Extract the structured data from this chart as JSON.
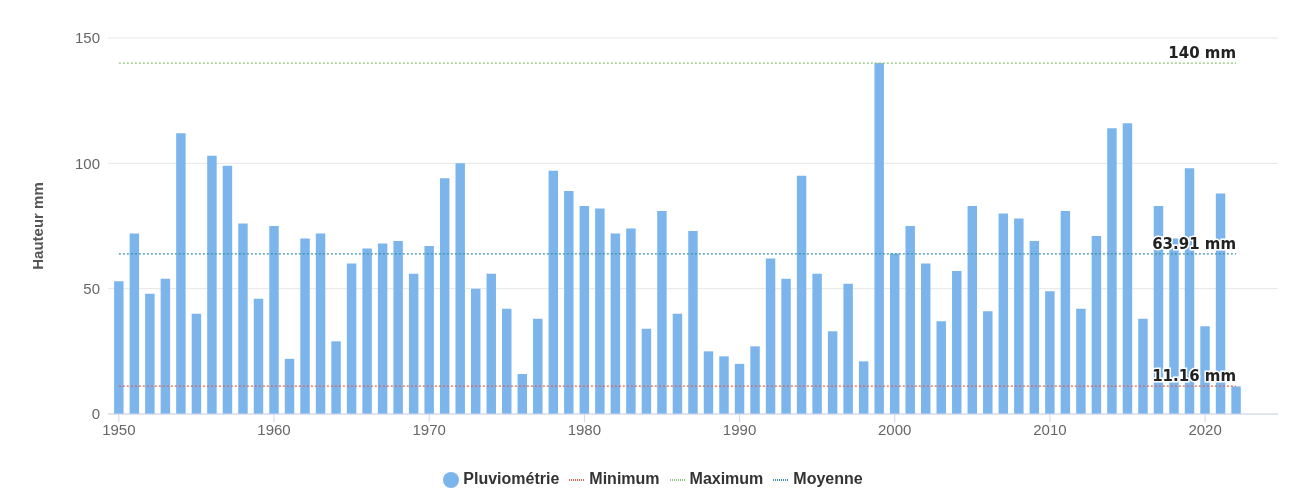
{
  "chart_data": {
    "type": "bar",
    "ylabel": "Hauteur mm",
    "x": [
      1950,
      1951,
      1952,
      1953,
      1954,
      1955,
      1956,
      1957,
      1958,
      1959,
      1960,
      1961,
      1962,
      1963,
      1964,
      1965,
      1966,
      1967,
      1968,
      1969,
      1970,
      1971,
      1972,
      1973,
      1974,
      1975,
      1976,
      1977,
      1978,
      1979,
      1980,
      1981,
      1982,
      1983,
      1984,
      1985,
      1986,
      1987,
      1988,
      1989,
      1990,
      1991,
      1992,
      1993,
      1994,
      1995,
      1996,
      1997,
      1998,
      1999,
      2000,
      2001,
      2002,
      2003,
      2004,
      2005,
      2006,
      2007,
      2008,
      2009,
      2010,
      2011,
      2012,
      2013,
      2014,
      2015,
      2016,
      2017,
      2018,
      2019,
      2020,
      2021,
      2022
    ],
    "xlim": [
      1949.3,
      2024.7
    ],
    "xticks": [
      1950,
      1960,
      1970,
      1980,
      1990,
      2000,
      2010,
      2020
    ],
    "ylim": [
      0,
      150
    ],
    "yticks": [
      0,
      50,
      100,
      150
    ],
    "grid": "y",
    "legend": "bottom",
    "series": [
      {
        "name": "Pluviométrie",
        "color": "#7cb5ec",
        "values": [
          53,
          72,
          48,
          54,
          112,
          40,
          103,
          99,
          76,
          46,
          75,
          22,
          70,
          72,
          29,
          60,
          66,
          68,
          69,
          56,
          67,
          94,
          100,
          50,
          56,
          42,
          16,
          38,
          97,
          89,
          83,
          82,
          72,
          74,
          34,
          81,
          40,
          73,
          25,
          23,
          20,
          27,
          62,
          54,
          95,
          56,
          33,
          52,
          21,
          140,
          64,
          75,
          60,
          37,
          57,
          83,
          41,
          80,
          78,
          69,
          49,
          81,
          42,
          71,
          114,
          116,
          38,
          83,
          70,
          98,
          35,
          88,
          11
        ]
      },
      {
        "name": "Minimum",
        "type": "line",
        "color": "#e0605a",
        "line_style": "dotted",
        "marker": "none",
        "values": [
          11.16,
          11.16,
          11.16,
          11.16,
          11.16,
          11.16,
          11.16,
          11.16,
          11.16,
          11.16,
          11.16,
          11.16,
          11.16,
          11.16,
          11.16,
          11.16,
          11.16,
          11.16,
          11.16,
          11.16,
          11.16,
          11.16,
          11.16,
          11.16,
          11.16,
          11.16,
          11.16,
          11.16,
          11.16,
          11.16,
          11.16,
          11.16,
          11.16,
          11.16,
          11.16,
          11.16,
          11.16,
          11.16,
          11.16,
          11.16,
          11.16,
          11.16,
          11.16,
          11.16,
          11.16,
          11.16,
          11.16,
          11.16,
          11.16,
          11.16,
          11.16,
          11.16,
          11.16,
          11.16,
          11.16,
          11.16,
          11.16,
          11.16,
          11.16,
          11.16,
          11.16,
          11.16,
          11.16,
          11.16,
          11.16,
          11.16,
          11.16,
          11.16,
          11.16,
          11.16,
          11.16,
          11.16,
          11.16
        ],
        "value_labels": [
          null,
          null,
          null,
          null,
          null,
          null,
          null,
          null,
          null,
          null,
          null,
          null,
          null,
          null,
          null,
          null,
          null,
          null,
          null,
          null,
          null,
          null,
          null,
          null,
          null,
          null,
          null,
          null,
          null,
          null,
          null,
          null,
          null,
          null,
          null,
          null,
          null,
          null,
          null,
          null,
          null,
          null,
          null,
          null,
          null,
          null,
          null,
          null,
          null,
          null,
          null,
          null,
          null,
          null,
          null,
          null,
          null,
          null,
          null,
          null,
          null,
          null,
          null,
          null,
          null,
          null,
          null,
          null,
          null,
          null,
          null,
          null,
          "11.16 mm"
        ]
      },
      {
        "name": "Maximum",
        "type": "line",
        "color": "#8cc47c",
        "line_style": "dotted",
        "marker": "none",
        "values": [
          140,
          140,
          140,
          140,
          140,
          140,
          140,
          140,
          140,
          140,
          140,
          140,
          140,
          140,
          140,
          140,
          140,
          140,
          140,
          140,
          140,
          140,
          140,
          140,
          140,
          140,
          140,
          140,
          140,
          140,
          140,
          140,
          140,
          140,
          140,
          140,
          140,
          140,
          140,
          140,
          140,
          140,
          140,
          140,
          140,
          140,
          140,
          140,
          140,
          140,
          140,
          140,
          140,
          140,
          140,
          140,
          140,
          140,
          140,
          140,
          140,
          140,
          140,
          140,
          140,
          140,
          140,
          140,
          140,
          140,
          140,
          140,
          140
        ],
        "value_labels": [
          null,
          null,
          null,
          null,
          null,
          null,
          null,
          null,
          null,
          null,
          null,
          null,
          null,
          null,
          null,
          null,
          null,
          null,
          null,
          null,
          null,
          null,
          null,
          null,
          null,
          null,
          null,
          null,
          null,
          null,
          null,
          null,
          null,
          null,
          null,
          null,
          null,
          null,
          null,
          null,
          null,
          null,
          null,
          null,
          null,
          null,
          null,
          null,
          null,
          null,
          null,
          null,
          null,
          null,
          null,
          null,
          null,
          null,
          null,
          null,
          null,
          null,
          null,
          null,
          null,
          null,
          null,
          null,
          null,
          null,
          null,
          null,
          "140 mm"
        ]
      },
      {
        "name": "Moyenne",
        "type": "line",
        "color": "#3a8fa8",
        "line_style": "dotted",
        "marker": "none",
        "values": [
          63.91,
          63.91,
          63.91,
          63.91,
          63.91,
          63.91,
          63.91,
          63.91,
          63.91,
          63.91,
          63.91,
          63.91,
          63.91,
          63.91,
          63.91,
          63.91,
          63.91,
          63.91,
          63.91,
          63.91,
          63.91,
          63.91,
          63.91,
          63.91,
          63.91,
          63.91,
          63.91,
          63.91,
          63.91,
          63.91,
          63.91,
          63.91,
          63.91,
          63.91,
          63.91,
          63.91,
          63.91,
          63.91,
          63.91,
          63.91,
          63.91,
          63.91,
          63.91,
          63.91,
          63.91,
          63.91,
          63.91,
          63.91,
          63.91,
          63.91,
          63.91,
          63.91,
          63.91,
          63.91,
          63.91,
          63.91,
          63.91,
          63.91,
          63.91,
          63.91,
          63.91,
          63.91,
          63.91,
          63.91,
          63.91,
          63.91,
          63.91,
          63.91,
          63.91,
          63.91,
          63.91,
          63.91,
          63.91
        ],
        "value_labels": [
          null,
          null,
          null,
          null,
          null,
          null,
          null,
          null,
          null,
          null,
          null,
          null,
          null,
          null,
          null,
          null,
          null,
          null,
          null,
          null,
          null,
          null,
          null,
          null,
          null,
          null,
          null,
          null,
          null,
          null,
          null,
          null,
          null,
          null,
          null,
          null,
          null,
          null,
          null,
          null,
          null,
          null,
          null,
          null,
          null,
          null,
          null,
          null,
          null,
          null,
          null,
          null,
          null,
          null,
          null,
          null,
          null,
          null,
          null,
          null,
          null,
          null,
          null,
          null,
          null,
          null,
          null,
          null,
          null,
          null,
          null,
          null,
          "63.91 mm"
        ]
      }
    ]
  }
}
